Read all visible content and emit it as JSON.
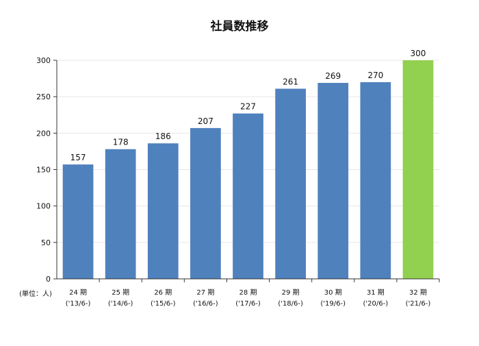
{
  "chart_data": {
    "type": "bar",
    "title": "社員数推移",
    "unit_label": "(単位：人)",
    "categories": [
      "24 期",
      "25 期",
      "26 期",
      "27 期",
      "28 期",
      "29 期",
      "30 期",
      "31 期",
      "32 期"
    ],
    "subcategories": [
      "('13/6-)",
      "('14/6-)",
      "('15/6-)",
      "('16/6-)",
      "('17/6-)",
      "('18/6-)",
      "('19/6-)",
      "('20/6-)",
      "('21/6-)"
    ],
    "values": [
      157,
      178,
      186,
      207,
      227,
      261,
      269,
      270,
      300
    ],
    "data_labels": [
      "157",
      "178",
      "186",
      "207",
      "227",
      "261",
      "269",
      "270",
      "300"
    ],
    "highlight_index": 8,
    "ylim": [
      0,
      300
    ],
    "yticks": [
      0,
      50,
      100,
      150,
      200,
      250,
      300
    ],
    "ytick_labels": [
      "0",
      "50",
      "100",
      "150",
      "200",
      "250",
      "300"
    ],
    "grid": true,
    "xlabel": "",
    "ylabel": "",
    "colors": {
      "bar": "#4f81bd",
      "highlight": "#92d050"
    }
  }
}
